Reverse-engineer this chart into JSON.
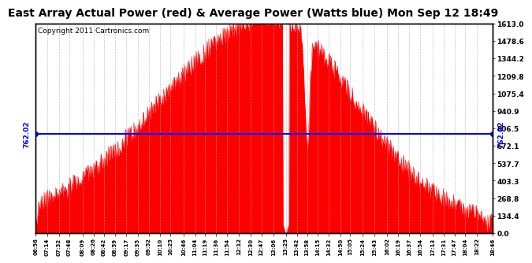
{
  "title": "East Array Actual Power (red) & Average Power (Watts blue) Mon Sep 12 18:49",
  "copyright": "Copyright 2011 Cartronics.com",
  "avg_line_y": 762.02,
  "avg_line_label": "762.02",
  "y_max": 1613.0,
  "y_min": 0.0,
  "y_ticks": [
    0.0,
    134.4,
    268.8,
    403.3,
    537.7,
    672.1,
    806.5,
    940.9,
    1075.4,
    1209.8,
    1344.2,
    1478.6,
    1613.0
  ],
  "fill_color": "red",
  "line_color": "blue",
  "background_color": "#ffffff",
  "grid_color": "#aaaaaa",
  "title_fontsize": 10,
  "copyright_fontsize": 6.5,
  "x_tick_labels": [
    "06:56",
    "07:14",
    "07:32",
    "07:48",
    "08:09",
    "08:26",
    "08:42",
    "08:59",
    "09:17",
    "09:35",
    "09:52",
    "10:10",
    "10:25",
    "10:46",
    "11:04",
    "11:19",
    "11:36",
    "11:54",
    "12:12",
    "12:30",
    "12:47",
    "13:06",
    "13:25",
    "13:42",
    "13:58",
    "14:15",
    "14:32",
    "14:50",
    "15:05",
    "15:24",
    "15:43",
    "16:02",
    "16:19",
    "16:37",
    "16:54",
    "17:13",
    "17:31",
    "17:47",
    "18:04",
    "18:22",
    "18:46"
  ],
  "t_start_str": "06:56",
  "t_end_str": "18:46"
}
